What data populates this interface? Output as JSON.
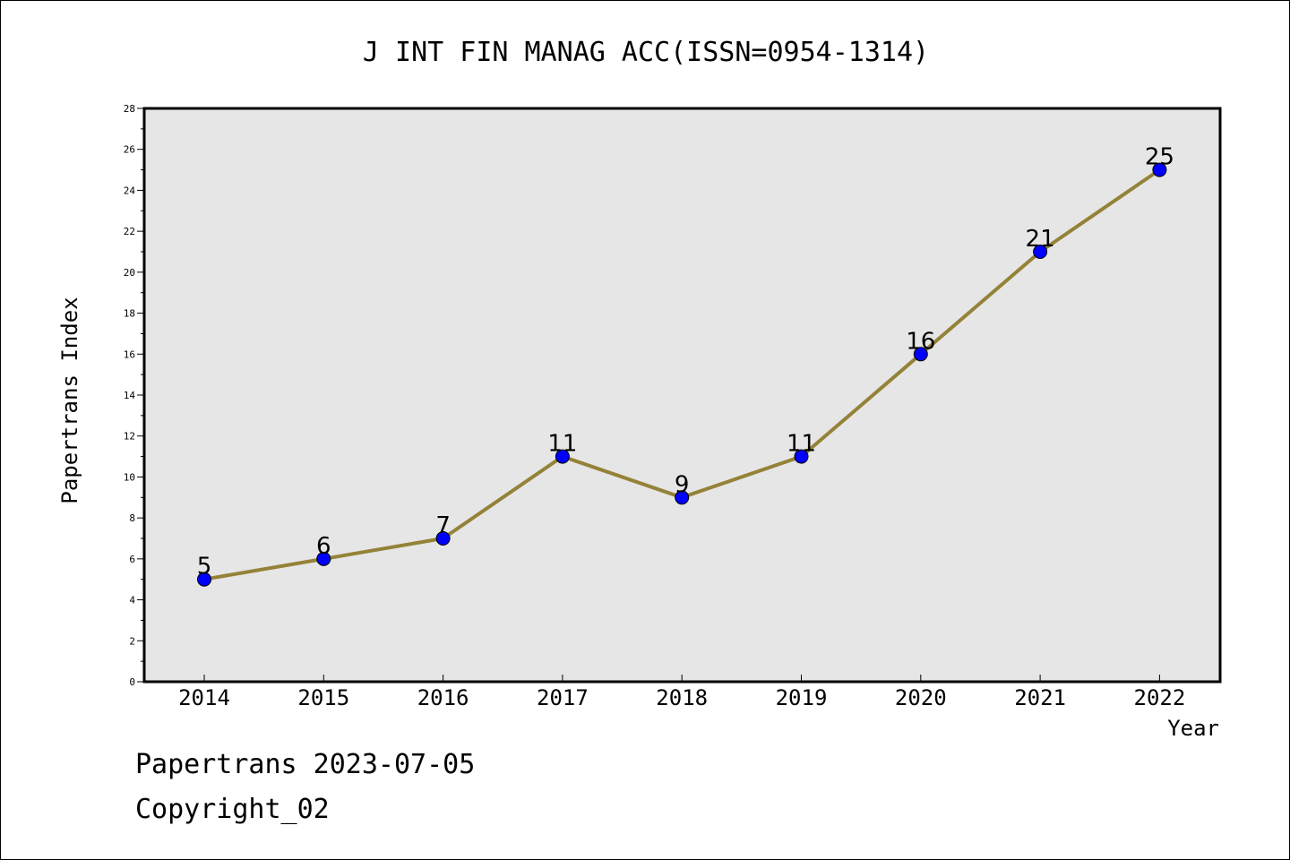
{
  "chart_data": {
    "type": "line",
    "title": "J INT FIN MANAG ACC(ISSN=0954-1314)",
    "xlabel": "Year",
    "ylabel": "Papertrans Index",
    "categories": [
      "2014",
      "2015",
      "2016",
      "2017",
      "2018",
      "2019",
      "2020",
      "2021",
      "2022"
    ],
    "series": [
      {
        "values": [
          5,
          6,
          7,
          11,
          9,
          11,
          16,
          21,
          25
        ]
      }
    ],
    "ylim": [
      0,
      28
    ],
    "yticks": [
      0,
      2,
      4,
      6,
      8,
      10,
      12,
      14,
      16,
      18,
      20,
      22,
      24,
      26,
      28
    ],
    "grid": false,
    "line_color": "#948238",
    "marker_color": "#0000ff",
    "plot_background": "#e6e6e6"
  },
  "footer": {
    "date_text": "Papertrans 2023-07-05",
    "copyright_text": "Copyright_02"
  }
}
